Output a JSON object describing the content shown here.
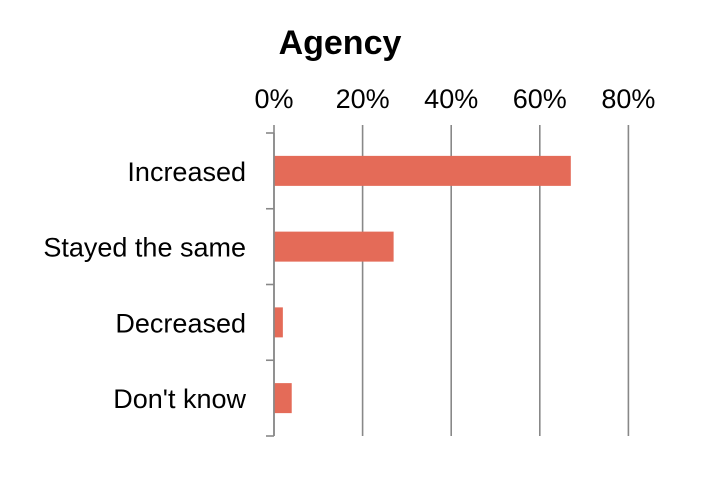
{
  "chart_data": {
    "type": "bar",
    "orientation": "horizontal",
    "title": "Agency",
    "categories": [
      "Increased",
      "Stayed the same",
      "Decreased",
      "Don't know"
    ],
    "values": [
      67,
      27,
      2,
      4
    ],
    "value_unit": "%",
    "xlim": [
      0,
      80
    ],
    "x_ticks": [
      0,
      20,
      40,
      60,
      80
    ],
    "x_tick_labels": [
      "0%",
      "20%",
      "40%",
      "60%",
      "80%"
    ],
    "x_axis_position": "top",
    "grid": true,
    "legend": "none",
    "bar_color": "#e46b58",
    "grid_color": "#888888",
    "text_color": "#000000"
  }
}
